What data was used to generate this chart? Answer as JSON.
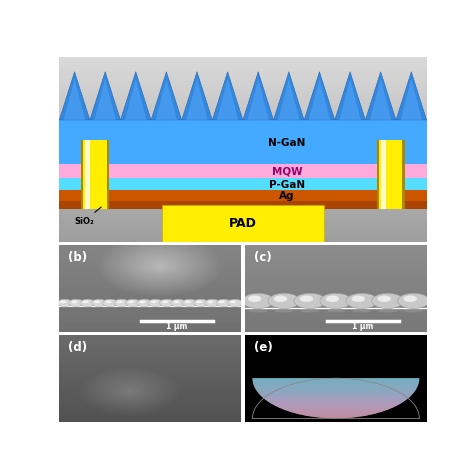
{
  "fig_width": 4.74,
  "fig_height": 4.74,
  "dpi": 100,
  "bg_gray_top": "#b8b8b8",
  "bg_gray_bot": "#d8d8d8",
  "layer_ngan": "#44aaff",
  "layer_ngan_dark": "#2277dd",
  "layer_mqw": "#ffaadd",
  "layer_pgan": "#55ddff",
  "layer_ag": "#cc5500",
  "layer_sio2": "#aa4400",
  "layer_pad": "#ffee00",
  "electrode_gold": "#aa8800",
  "electrode_yellow": "#ffee00",
  "electrode_white": "#ffffee",
  "spike_blue": "#3388dd",
  "spike_edge": "#1155aa",
  "labels": {
    "ngan": "N-GaN",
    "mqw": "MQW",
    "pgan": "P-GaN",
    "ag": "Ag",
    "pad": "PAD",
    "sio2": "SiO₂"
  },
  "scale_bar_text": "1 μm"
}
